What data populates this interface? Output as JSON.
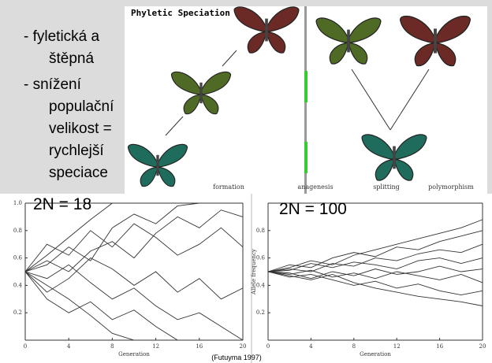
{
  "text": {
    "lines": [
      "- fyletická a",
      "štěpná",
      "- snížení",
      "populační",
      "velikost =",
      "rychlejší",
      "speciace"
    ]
  },
  "figure": {
    "title": "Phyletic Speciation",
    "labels": [
      "formation",
      "anagenesis",
      "splitting",
      "polymorphism"
    ]
  },
  "source": "(Futuyma 1997)",
  "chart_data": [
    {
      "type": "line",
      "title": "2N = 18",
      "x_label": "Generation",
      "color": "#333333",
      "x": [
        0,
        2,
        4,
        6,
        8,
        10,
        12,
        14,
        16,
        18,
        20
      ],
      "xlim": [
        0,
        20
      ],
      "xticks": [
        0,
        4,
        8,
        12,
        16,
        20
      ],
      "ylim": [
        0,
        1
      ],
      "yticks": [
        0.2,
        0.4,
        0.6,
        0.8,
        {
          "value": 1,
          "label": "1.0"
        }
      ],
      "series": [
        {
          "values": [
            0.5,
            0.62,
            0.75,
            0.88,
            1,
            1,
            1,
            1,
            1,
            1,
            1
          ]
        },
        {
          "values": [
            0.5,
            0.4,
            0.3,
            0.18,
            0.05,
            0,
            0,
            0,
            0,
            0,
            0
          ]
        },
        {
          "values": [
            0.5,
            0.58,
            0.5,
            0.65,
            0.72,
            0.6,
            0.78,
            0.9,
            0.82,
            0.95,
            0.9
          ]
        },
        {
          "values": [
            0.5,
            0.45,
            0.55,
            0.42,
            0.3,
            0.38,
            0.25,
            0.15,
            0.2,
            0.1,
            0
          ]
        },
        {
          "values": [
            0.5,
            0.7,
            0.62,
            0.8,
            0.68,
            0.85,
            0.75,
            0.62,
            0.7,
            0.82,
            0.68
          ]
        },
        {
          "values": [
            0.5,
            0.35,
            0.45,
            0.6,
            0.52,
            0.4,
            0.5,
            0.35,
            0.45,
            0.3,
            0.38
          ]
        },
        {
          "values": [
            0.5,
            0.55,
            0.68,
            0.58,
            0.82,
            0.92,
            0.85,
            0.98,
            1,
            1,
            1
          ]
        },
        {
          "values": [
            0.5,
            0.3,
            0.2,
            0.28,
            0.15,
            0.22,
            0.1,
            0,
            0,
            0,
            0
          ]
        }
      ]
    },
    {
      "type": "line",
      "title": "2N = 100",
      "x_label": "Generation",
      "y_label": "Allele frequency",
      "color": "#333333",
      "x": [
        0,
        2,
        4,
        6,
        8,
        10,
        12,
        14,
        16,
        18,
        20
      ],
      "xlim": [
        0,
        20
      ],
      "xticks": [
        0,
        4,
        8,
        12,
        16,
        20
      ],
      "ylim": [
        0,
        1
      ],
      "yticks": [
        0.2,
        0.4,
        0.6,
        0.8
      ],
      "series": [
        {
          "values": [
            0.5,
            0.53,
            0.58,
            0.55,
            0.62,
            0.66,
            0.7,
            0.74,
            0.78,
            0.82,
            0.88
          ]
        },
        {
          "values": [
            0.5,
            0.47,
            0.44,
            0.48,
            0.42,
            0.38,
            0.35,
            0.32,
            0.3,
            0.28,
            0.25
          ]
        },
        {
          "values": [
            0.5,
            0.52,
            0.5,
            0.56,
            0.54,
            0.6,
            0.58,
            0.63,
            0.66,
            0.64,
            0.7
          ]
        },
        {
          "values": [
            0.5,
            0.48,
            0.51,
            0.46,
            0.49,
            0.45,
            0.5,
            0.47,
            0.44,
            0.48,
            0.42
          ]
        },
        {
          "values": [
            0.5,
            0.55,
            0.53,
            0.6,
            0.64,
            0.61,
            0.68,
            0.66,
            0.72,
            0.76,
            0.8
          ]
        },
        {
          "values": [
            0.5,
            0.46,
            0.48,
            0.44,
            0.4,
            0.43,
            0.38,
            0.41,
            0.36,
            0.33,
            0.36
          ]
        },
        {
          "values": [
            0.5,
            0.51,
            0.56,
            0.53,
            0.57,
            0.55,
            0.52,
            0.58,
            0.6,
            0.56,
            0.6
          ]
        },
        {
          "values": [
            0.5,
            0.49,
            0.45,
            0.5,
            0.47,
            0.52,
            0.48,
            0.5,
            0.54,
            0.5,
            0.52
          ]
        }
      ]
    }
  ]
}
